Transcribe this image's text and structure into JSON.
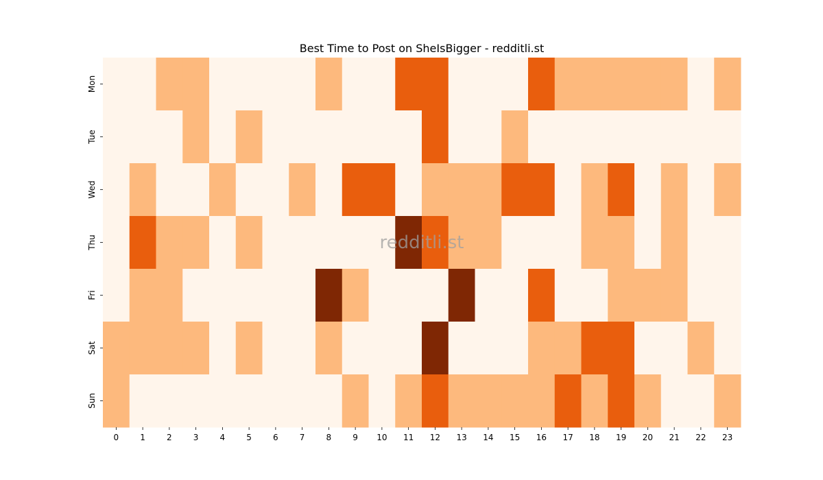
{
  "chart_data": {
    "type": "heatmap",
    "title": "Best Time to Post on SheIsBigger - redditli.st",
    "watermark": "redditli.st",
    "xlabel": "",
    "ylabel": "",
    "x_categories": [
      "0",
      "1",
      "2",
      "3",
      "4",
      "5",
      "6",
      "7",
      "8",
      "9",
      "10",
      "11",
      "12",
      "13",
      "14",
      "15",
      "16",
      "17",
      "18",
      "19",
      "20",
      "21",
      "22",
      "23"
    ],
    "y_categories": [
      "Mon",
      "Tue",
      "Wed",
      "Thu",
      "Fri",
      "Sat",
      "Sun"
    ],
    "levels": [
      0,
      1,
      2,
      3
    ],
    "colors": [
      "#fff5eb",
      "#fdb97d",
      "#e95e0d",
      "#7f2704"
    ],
    "values": [
      [
        0,
        0,
        1,
        1,
        0,
        0,
        0,
        0,
        1,
        0,
        0,
        2,
        2,
        0,
        0,
        0,
        2,
        1,
        1,
        1,
        1,
        1,
        0,
        1
      ],
      [
        0,
        0,
        0,
        1,
        0,
        1,
        0,
        0,
        0,
        0,
        0,
        0,
        2,
        0,
        0,
        1,
        0,
        0,
        0,
        0,
        0,
        0,
        0,
        0
      ],
      [
        0,
        1,
        0,
        0,
        1,
        0,
        0,
        1,
        0,
        2,
        2,
        0,
        1,
        1,
        1,
        2,
        2,
        0,
        1,
        2,
        0,
        1,
        0,
        1
      ],
      [
        0,
        2,
        1,
        1,
        0,
        1,
        0,
        0,
        0,
        0,
        0,
        3,
        2,
        1,
        1,
        0,
        0,
        0,
        1,
        1,
        0,
        1,
        0,
        0
      ],
      [
        0,
        1,
        1,
        0,
        0,
        0,
        0,
        0,
        3,
        1,
        0,
        0,
        0,
        3,
        0,
        0,
        2,
        0,
        0,
        1,
        1,
        1,
        0,
        0
      ],
      [
        1,
        1,
        1,
        1,
        0,
        1,
        0,
        0,
        1,
        0,
        0,
        0,
        3,
        0,
        0,
        0,
        1,
        1,
        2,
        2,
        0,
        0,
        1,
        0
      ],
      [
        1,
        0,
        0,
        0,
        0,
        0,
        0,
        0,
        0,
        1,
        0,
        1,
        2,
        1,
        1,
        1,
        1,
        2,
        1,
        2,
        1,
        0,
        0,
        1
      ]
    ],
    "grid": false,
    "legend": "none"
  }
}
